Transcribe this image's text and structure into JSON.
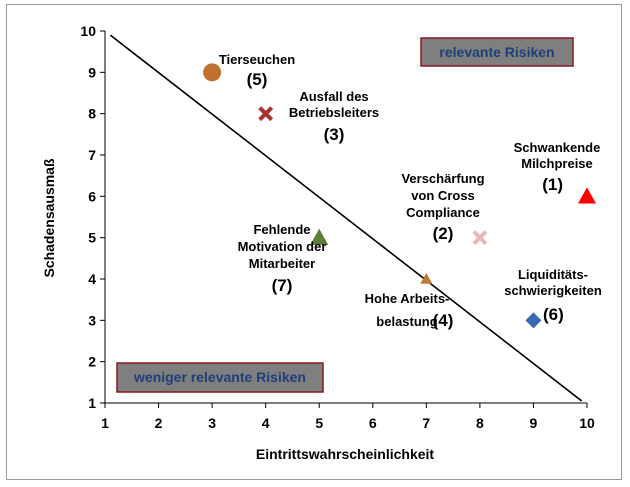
{
  "chart_data": {
    "type": "scatter",
    "xlabel": "Eintrittswahrscheinlichkeit",
    "ylabel": "Schadensausmaß",
    "xlim": [
      1,
      10
    ],
    "ylim": [
      1,
      10
    ],
    "xticks": [
      1,
      2,
      3,
      4,
      5,
      6,
      7,
      8,
      9,
      10
    ],
    "yticks": [
      1,
      2,
      3,
      4,
      5,
      6,
      7,
      8,
      9,
      10
    ],
    "grid": false,
    "separator_line": {
      "from": [
        1.1,
        9.9
      ],
      "to": [
        9.9,
        1.05
      ]
    },
    "region_labels": {
      "upper": "relevante Risiken",
      "lower": "weniger relevante Risiken"
    },
    "points": [
      {
        "id": "tierseuchen",
        "x": 3,
        "y": 9,
        "marker": "circle",
        "color": "#c0702f",
        "label_lines": [
          "Tierseuchen"
        ],
        "number": "(5)"
      },
      {
        "id": "ausfall",
        "x": 4,
        "y": 8,
        "marker": "x",
        "color": "#a83232",
        "label_lines": [
          "Ausfall des",
          "Betriebsleiters"
        ],
        "number": "(3)"
      },
      {
        "id": "milchpreise",
        "x": 10,
        "y": 6,
        "marker": "triangle",
        "color": "#ff0000",
        "label_lines": [
          "Schwankende",
          "Milchpreise"
        ],
        "number": "(1)"
      },
      {
        "id": "cross",
        "x": 8,
        "y": 5,
        "marker": "x",
        "color": "#e6b8b8",
        "label_lines": [
          "Verschärfung",
          "von Cross",
          "Compliance"
        ],
        "number": "(2)"
      },
      {
        "id": "motivation",
        "x": 5,
        "y": 5,
        "marker": "triangle",
        "color": "#5b7f3a",
        "label_lines": [
          "Fehlende",
          "Motivation der",
          "Mitarbeiter"
        ],
        "number": "(7)"
      },
      {
        "id": "arbeitsbelastung",
        "x": 7,
        "y": 4,
        "marker": "triangle",
        "color": "#c07830",
        "label_lines": [
          "Hohe Arbeits-",
          "belastung"
        ],
        "number": "(4)"
      },
      {
        "id": "liquiditaet",
        "x": 9,
        "y": 3,
        "marker": "diamond",
        "color": "#3a6ab3",
        "label_lines": [
          "Liquiditäts-",
          "schwierigkeiten"
        ],
        "number": "(6)"
      }
    ]
  }
}
